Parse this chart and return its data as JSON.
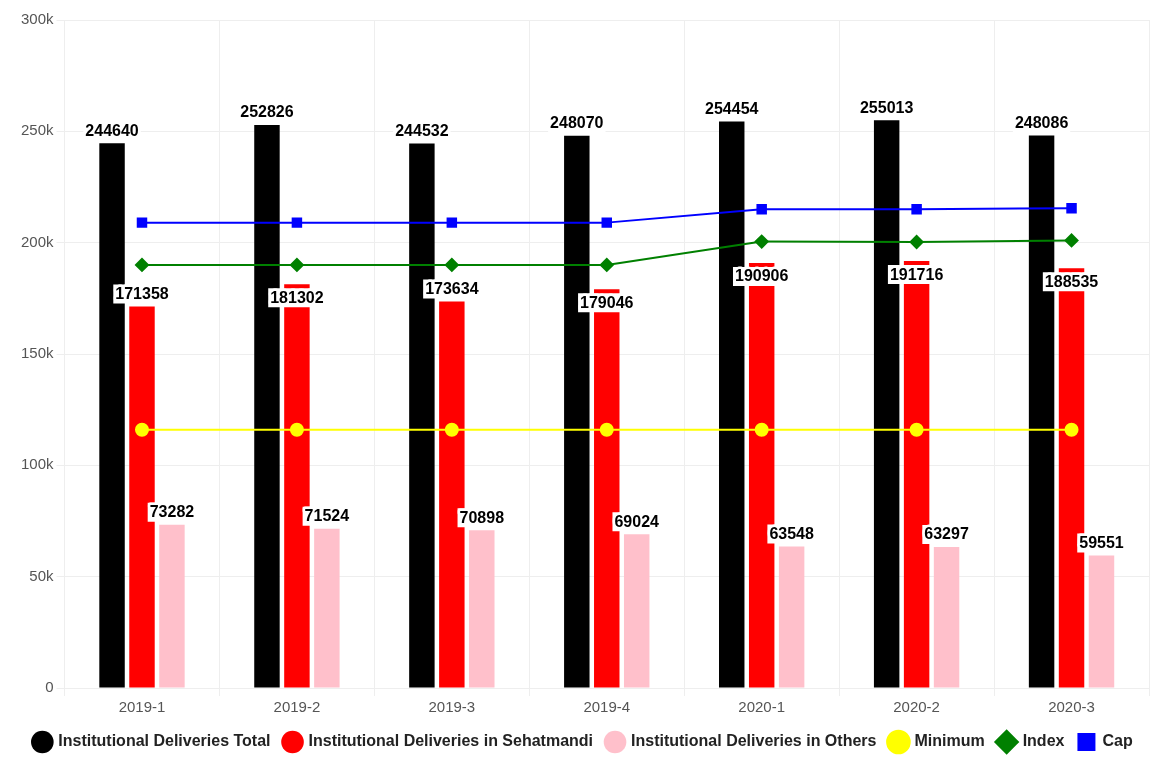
{
  "chart_data": {
    "type": "bar",
    "categories": [
      "2019-1",
      "2019-2",
      "2019-3",
      "2019-4",
      "2020-1",
      "2020-2",
      "2020-3"
    ],
    "series": [
      {
        "name": "Institutional Deliveries Total",
        "color": "#000000",
        "values": [
          244640,
          252826,
          244532,
          248070,
          254454,
          255013,
          248086
        ],
        "value_labels": [
          "244640",
          "252826",
          "244532",
          "248070",
          "254454",
          "255013",
          "248086"
        ]
      },
      {
        "name": "Institutional Deliveries in Sehatmandi",
        "color": "#ff0000",
        "values": [
          171358,
          181302,
          173634,
          179046,
          190906,
          191716,
          188535
        ],
        "value_labels": [
          "171358",
          "181302",
          "173634",
          "179046",
          "190906",
          "191716",
          "188535"
        ]
      },
      {
        "name": "Institutional Deliveries in Others",
        "color": "#ffc0cb",
        "values": [
          73282,
          71524,
          70898,
          69024,
          63548,
          63297,
          59551
        ],
        "value_labels": [
          "73282",
          "71524",
          "70898",
          "69024",
          "63548",
          "63297",
          "59551"
        ]
      },
      {
        "name": "Minimum",
        "type": "line",
        "marker": "circle",
        "color": "#ffff00",
        "values": [
          116000,
          116000,
          116000,
          116000,
          116000,
          116000,
          116000
        ]
      },
      {
        "name": "Index",
        "type": "line",
        "marker": "diamond",
        "color": "#008000",
        "values": [
          190000,
          190000,
          190000,
          190000,
          200500,
          200300,
          201000
        ]
      },
      {
        "name": "Cap",
        "type": "line",
        "marker": "square",
        "color": "#0000ff",
        "values": [
          209000,
          209000,
          209000,
          209000,
          215000,
          215000,
          215500
        ]
      }
    ],
    "ylim": [
      0,
      300000
    ],
    "yticks": [
      {
        "value": 0,
        "label": "0"
      },
      {
        "value": 50000,
        "label": "50k"
      },
      {
        "value": 100000,
        "label": "100k"
      },
      {
        "value": 150000,
        "label": "150k"
      },
      {
        "value": 200000,
        "label": "200k"
      },
      {
        "value": 250000,
        "label": "250k"
      },
      {
        "value": 300000,
        "label": "300k"
      }
    ],
    "grid": true,
    "legend": "bottom"
  }
}
